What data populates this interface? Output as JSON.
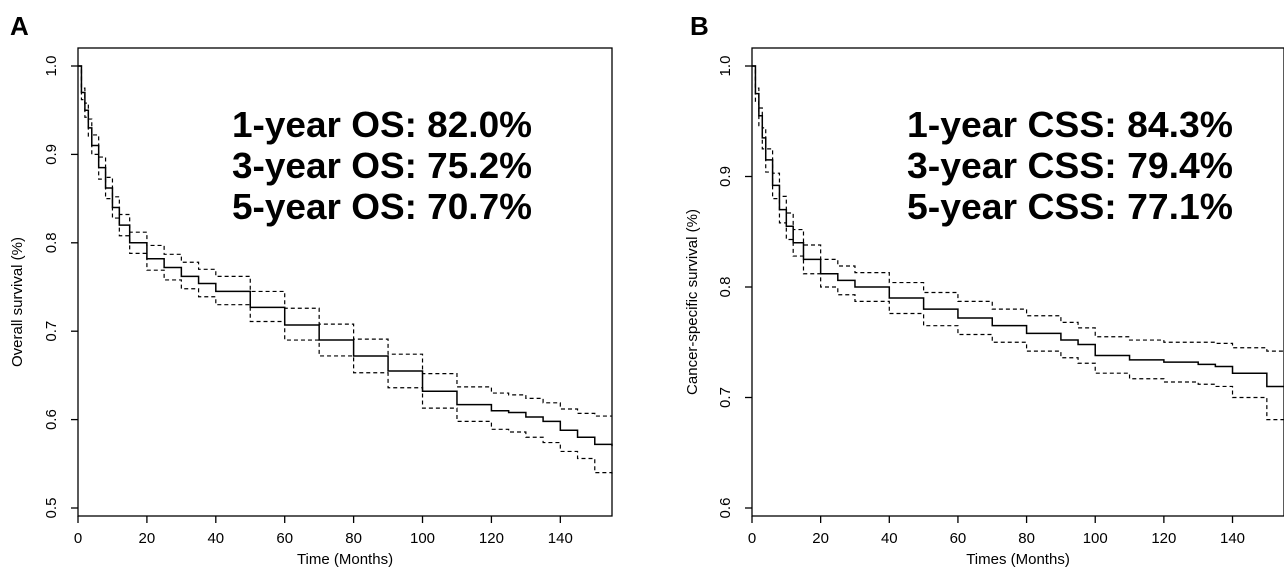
{
  "chart_data": [
    {
      "panel": "A",
      "type": "line",
      "xlabel": "Time (Months)",
      "ylabel": "Overall survival (%)",
      "xlim": [
        0,
        155
      ],
      "ylim": [
        0.5,
        1.0
      ],
      "xticks": [
        0,
        20,
        40,
        60,
        80,
        100,
        120,
        140
      ],
      "yticks": [
        0.5,
        0.6,
        0.7,
        0.8,
        0.9,
        1.0
      ],
      "grid": false,
      "annotations": [
        "1-year OS: 82.0%",
        "3-year OS: 75.2%",
        "5-year OS: 70.7%"
      ],
      "series": [
        {
          "style": "solid",
          "x": [
            0,
            1,
            2,
            3,
            4,
            6,
            8,
            10,
            12,
            15,
            20,
            25,
            30,
            35,
            40,
            50,
            60,
            70,
            80,
            90,
            100,
            110,
            120,
            125,
            130,
            135,
            140,
            145,
            150,
            155
          ],
          "y": [
            1.0,
            0.97,
            0.95,
            0.93,
            0.91,
            0.885,
            0.862,
            0.84,
            0.82,
            0.8,
            0.782,
            0.772,
            0.762,
            0.754,
            0.745,
            0.727,
            0.707,
            0.69,
            0.672,
            0.655,
            0.632,
            0.617,
            0.61,
            0.608,
            0.603,
            0.598,
            0.588,
            0.58,
            0.572,
            0.57
          ]
        },
        {
          "style": "dashed",
          "x": [
            0,
            1,
            2,
            3,
            4,
            6,
            8,
            10,
            12,
            15,
            20,
            25,
            30,
            35,
            40,
            50,
            60,
            70,
            80,
            90,
            100,
            110,
            120,
            125,
            130,
            135,
            140,
            145,
            150,
            155
          ],
          "y": [
            1.0,
            0.975,
            0.958,
            0.94,
            0.922,
            0.897,
            0.874,
            0.852,
            0.832,
            0.812,
            0.797,
            0.787,
            0.778,
            0.77,
            0.762,
            0.745,
            0.726,
            0.708,
            0.691,
            0.674,
            0.652,
            0.637,
            0.63,
            0.628,
            0.624,
            0.619,
            0.612,
            0.607,
            0.604,
            0.604
          ]
        },
        {
          "style": "dashed",
          "x": [
            0,
            1,
            2,
            3,
            4,
            6,
            8,
            10,
            12,
            15,
            20,
            25,
            30,
            35,
            40,
            50,
            60,
            70,
            80,
            90,
            100,
            110,
            120,
            125,
            130,
            135,
            140,
            145,
            150,
            155
          ],
          "y": [
            1.0,
            0.962,
            0.942,
            0.92,
            0.9,
            0.872,
            0.85,
            0.828,
            0.808,
            0.788,
            0.769,
            0.758,
            0.748,
            0.739,
            0.73,
            0.711,
            0.69,
            0.672,
            0.653,
            0.636,
            0.613,
            0.598,
            0.589,
            0.586,
            0.58,
            0.574,
            0.564,
            0.556,
            0.54,
            0.538
          ]
        }
      ]
    },
    {
      "panel": "B",
      "type": "line",
      "xlabel": "Times (Months)",
      "ylabel": "Cancer-specific survival (%)",
      "xlim": [
        0,
        155
      ],
      "ylim": [
        0.6,
        1.0
      ],
      "xticks": [
        0,
        20,
        40,
        60,
        80,
        100,
        120,
        140
      ],
      "yticks": [
        0.6,
        0.7,
        0.8,
        0.9,
        1.0
      ],
      "grid": false,
      "annotations": [
        "1-year CSS: 84.3%",
        "3-year CSS: 79.4%",
        "5-year CSS: 77.1%"
      ],
      "series": [
        {
          "style": "solid",
          "x": [
            0,
            1,
            2,
            3,
            4,
            6,
            8,
            10,
            12,
            15,
            20,
            25,
            30,
            40,
            50,
            60,
            70,
            80,
            90,
            95,
            100,
            110,
            120,
            130,
            135,
            140,
            150,
            155
          ],
          "y": [
            1.0,
            0.975,
            0.955,
            0.935,
            0.915,
            0.892,
            0.87,
            0.855,
            0.84,
            0.825,
            0.812,
            0.806,
            0.8,
            0.79,
            0.78,
            0.772,
            0.765,
            0.758,
            0.752,
            0.748,
            0.738,
            0.734,
            0.732,
            0.73,
            0.728,
            0.722,
            0.71,
            0.71
          ]
        },
        {
          "style": "dashed",
          "x": [
            0,
            1,
            2,
            3,
            4,
            6,
            8,
            10,
            12,
            15,
            20,
            25,
            30,
            40,
            50,
            60,
            70,
            80,
            90,
            95,
            100,
            110,
            120,
            130,
            135,
            140,
            150,
            155
          ],
          "y": [
            1.0,
            0.98,
            0.962,
            0.944,
            0.925,
            0.903,
            0.882,
            0.867,
            0.852,
            0.838,
            0.825,
            0.819,
            0.813,
            0.804,
            0.795,
            0.787,
            0.78,
            0.774,
            0.768,
            0.763,
            0.755,
            0.752,
            0.75,
            0.75,
            0.749,
            0.745,
            0.742,
            0.742
          ]
        },
        {
          "style": "dashed",
          "x": [
            0,
            1,
            2,
            3,
            4,
            6,
            8,
            10,
            12,
            15,
            20,
            25,
            30,
            40,
            50,
            60,
            70,
            80,
            90,
            95,
            100,
            110,
            120,
            130,
            135,
            140,
            150,
            155
          ],
          "y": [
            1.0,
            0.968,
            0.946,
            0.925,
            0.904,
            0.88,
            0.858,
            0.843,
            0.828,
            0.812,
            0.8,
            0.793,
            0.787,
            0.776,
            0.765,
            0.757,
            0.75,
            0.742,
            0.736,
            0.731,
            0.722,
            0.717,
            0.714,
            0.712,
            0.71,
            0.7,
            0.68,
            0.678
          ]
        }
      ]
    }
  ]
}
